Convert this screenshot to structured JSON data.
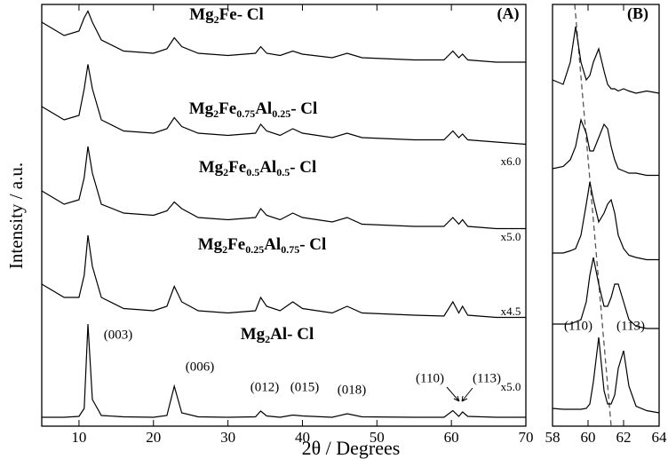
{
  "chart_data": [
    {
      "type": "line",
      "title": "(A)",
      "xlabel": "2θ / Degrees",
      "ylabel": "Intensity / a.u.",
      "color": "#000000",
      "xlim": [
        5,
        70
      ],
      "xticks": [
        10,
        20,
        30,
        40,
        50,
        60,
        70
      ],
      "ylim": [
        0,
        95
      ],
      "x": [
        5,
        8,
        10,
        10.7,
        11.2,
        11.8,
        13,
        16,
        20,
        21.8,
        22.8,
        23.8,
        26,
        30,
        33.7,
        34.4,
        35.2,
        37,
        38.7,
        40,
        44,
        46,
        48,
        55,
        59,
        60.2,
        61,
        61.5,
        62.2,
        66,
        70
      ],
      "series": [
        {
          "name": "Mg2Fe- Cl",
          "values": [
            91,
            88,
            89,
            92,
            93.5,
            91,
            87,
            84.5,
            84,
            85,
            87.5,
            85.5,
            84,
            83.5,
            84,
            85.5,
            84,
            83.5,
            84.5,
            83.8,
            83,
            84,
            83,
            82.5,
            82.5,
            84.5,
            83,
            83.8,
            82.5,
            82,
            82
          ]
        },
        {
          "name": "Mg2Fe0.75Al0.25- Cl",
          "values": [
            72,
            69,
            70,
            76,
            81.5,
            76,
            69,
            66.5,
            66,
            67,
            69.5,
            67.5,
            66,
            65.5,
            66,
            68,
            66.5,
            65.5,
            67,
            66,
            65,
            66,
            65,
            64.5,
            64.5,
            66.5,
            65,
            65.8,
            64.5,
            64,
            63.5
          ]
        },
        {
          "name": "Mg2Fe0.5Al0.5- Cl",
          "values": [
            53,
            50,
            51,
            56,
            63,
            57,
            50,
            48,
            47.5,
            48.5,
            50.5,
            49,
            47,
            46.5,
            47,
            49,
            47.5,
            46.5,
            48,
            47,
            46,
            47,
            45.5,
            45,
            45,
            47,
            45.5,
            46.5,
            45,
            44.5,
            44.5
          ]
        },
        {
          "name": "Mg2Fe0.25Al0.75- Cl",
          "values": [
            32,
            29,
            29,
            34,
            43,
            36,
            29,
            26.5,
            26,
            27,
            31.5,
            28,
            26,
            25.5,
            26,
            29,
            27,
            26,
            28,
            26.5,
            25.5,
            27,
            25.5,
            25,
            24.8,
            28,
            25.5,
            27,
            25,
            24.5,
            24.5
          ]
        },
        {
          "name": "Mg2Al- Cl",
          "values": [
            2,
            2,
            2.2,
            4,
            23,
            6,
            2.4,
            2.1,
            2,
            2.4,
            9,
            3,
            2.1,
            2,
            2.1,
            3.4,
            2.3,
            2,
            2.5,
            2.3,
            2,
            2.8,
            2.1,
            2,
            2,
            3.5,
            2.2,
            3.2,
            2.2,
            2,
            2
          ]
        }
      ],
      "annotations": [
        "x6.0",
        "x5.0",
        "x4.5",
        "x5.0",
        "(003)",
        "(006)",
        "(012)",
        "(015)",
        "(018)",
        "(110)",
        "(113)"
      ]
    },
    {
      "type": "line",
      "title": "(B)",
      "color": "#000000",
      "xlim": [
        58,
        64
      ],
      "xticks": [
        58,
        60,
        62,
        64
      ],
      "ylim": [
        0,
        95
      ],
      "x": [
        58,
        58.6,
        59,
        59.3,
        59.6,
        59.9,
        60.1,
        60.3,
        60.6,
        60.9,
        61.1,
        61.3,
        61.5,
        61.7,
        62,
        62.3,
        62.7,
        63.3,
        64
      ],
      "series": [
        {
          "values": [
            78,
            77,
            82,
            90,
            82,
            78,
            79,
            82,
            85,
            80,
            77,
            76,
            76,
            75.5,
            76,
            75.5,
            75,
            75.5,
            75
          ]
        },
        {
          "values": [
            58,
            58.5,
            60,
            63,
            69,
            66,
            62,
            62,
            65,
            68,
            67,
            63,
            60,
            58,
            57.5,
            57,
            57,
            56.5,
            56.5
          ]
        },
        {
          "values": [
            39,
            39,
            39.5,
            40,
            43,
            50,
            55,
            51,
            46,
            48,
            50,
            51,
            48,
            43,
            40,
            38.5,
            38,
            37.5,
            37.5
          ]
        },
        {
          "values": [
            23,
            23,
            23,
            23.5,
            24,
            28,
            34,
            38,
            32,
            27,
            27,
            29,
            32,
            32,
            28,
            24,
            22.5,
            22,
            22
          ]
        },
        {
          "values": [
            4,
            3.8,
            3.8,
            3.8,
            3.8,
            4,
            5,
            10,
            20,
            8,
            5,
            5,
            7,
            13,
            17,
            9,
            4.5,
            3.5,
            3
          ]
        }
      ],
      "annotations": [
        "(110)",
        "(113)"
      ]
    }
  ]
}
